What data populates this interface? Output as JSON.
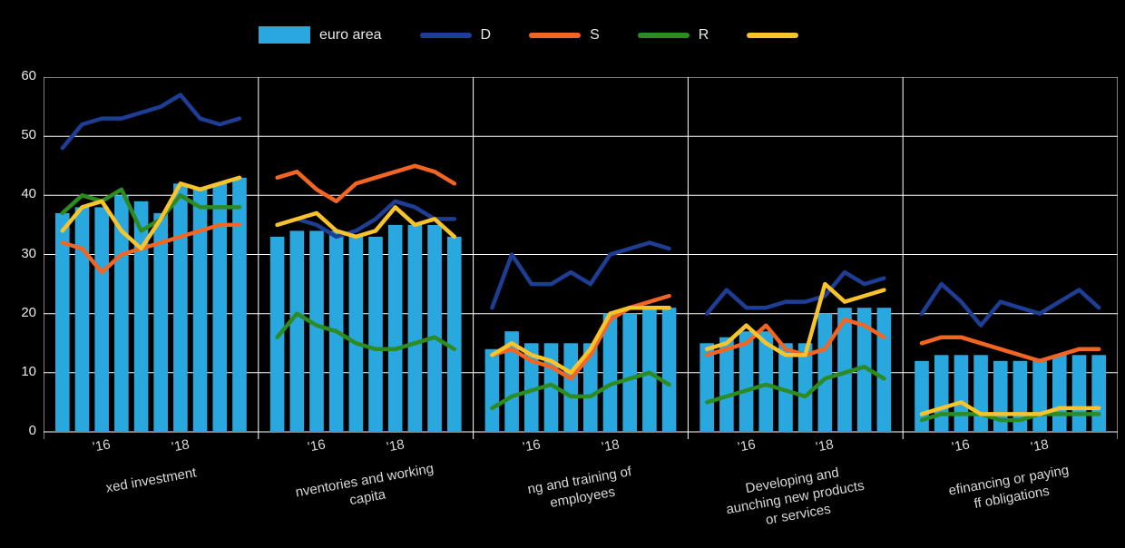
{
  "legend": {
    "items": [
      {
        "label": "euro area",
        "color": "#29a8e0",
        "type": "bar"
      },
      {
        "label": "D",
        "color": "#1d3e94",
        "type": "line"
      },
      {
        "label": "S",
        "color": "#f26522",
        "type": "line"
      },
      {
        "label": "R",
        "color": "#2e8b22",
        "type": "line"
      },
      {
        "label": "",
        "color": "#f9c32b",
        "type": "line"
      }
    ]
  },
  "chart_data": {
    "type": "bar+line",
    "y_range": [
      0,
      60
    ],
    "y_ticks": [
      60,
      50,
      40,
      30,
      20,
      10,
      0
    ],
    "grid": true,
    "bar_series": "euro area",
    "bar_color": "#29a8e0",
    "line_series": [
      "D",
      "S",
      "R",
      ""
    ],
    "line_colors": [
      "#1d3e94",
      "#f26522",
      "#2e8b22",
      "#f9c32b"
    ],
    "x_ticks": {
      "labels": [
        "'16",
        "'18"
      ],
      "indices": [
        2,
        6
      ]
    },
    "panels": [
      {
        "title_lines": [
          "xed investment"
        ],
        "bars": [
          37,
          38,
          38,
          40,
          39,
          37,
          42,
          41,
          42,
          43
        ],
        "lines": [
          [
            48,
            52,
            53,
            53,
            54,
            55,
            57,
            53,
            52,
            53
          ],
          [
            32,
            31,
            27,
            30,
            31,
            32,
            33,
            34,
            35,
            35
          ],
          [
            37,
            40,
            39,
            41,
            34,
            36,
            40,
            38,
            38,
            38
          ],
          [
            34,
            38,
            39,
            34,
            31,
            36,
            42,
            41,
            42,
            43
          ]
        ]
      },
      {
        "title_lines": [
          "nventories and working",
          "capita"
        ],
        "bars": [
          33,
          34,
          34,
          34,
          33,
          33,
          35,
          35,
          35,
          33
        ],
        "lines": [
          [
            35,
            36,
            35,
            33,
            34,
            36,
            39,
            38,
            36,
            36
          ],
          [
            43,
            44,
            41,
            39,
            42,
            43,
            44,
            45,
            44,
            42
          ],
          [
            16,
            20,
            18,
            17,
            15,
            14,
            14,
            15,
            16,
            14
          ],
          [
            35,
            36,
            37,
            34,
            33,
            34,
            38,
            35,
            36,
            33
          ]
        ]
      },
      {
        "title_lines": [
          "ng and training of",
          "employees"
        ],
        "bars": [
          14,
          17,
          15,
          15,
          15,
          15,
          20,
          20,
          21,
          21
        ],
        "lines": [
          [
            21,
            30,
            25,
            25,
            27,
            25,
            30,
            31,
            32,
            31
          ],
          [
            13,
            14,
            12,
            11,
            9,
            13,
            19,
            21,
            22,
            23
          ],
          [
            4,
            6,
            7,
            8,
            6,
            6,
            8,
            9,
            10,
            8
          ],
          [
            13,
            15,
            13,
            12,
            10,
            14,
            20,
            21,
            21,
            21
          ]
        ]
      },
      {
        "title_lines": [
          "Developing and",
          "aunching new products",
          "or services"
        ],
        "bars": [
          15,
          16,
          17,
          17,
          15,
          15,
          20,
          21,
          21,
          21
        ],
        "lines": [
          [
            20,
            24,
            21,
            21,
            22,
            22,
            23,
            27,
            25,
            26
          ],
          [
            13,
            14,
            15,
            18,
            14,
            13,
            14,
            19,
            18,
            16
          ],
          [
            5,
            6,
            7,
            8,
            7,
            6,
            9,
            10,
            11,
            9
          ],
          [
            14,
            15,
            18,
            15,
            13,
            13,
            25,
            22,
            23,
            24
          ]
        ]
      },
      {
        "title_lines": [
          "efinancing or paying",
          "ff obligations"
        ],
        "bars": [
          12,
          13,
          13,
          13,
          12,
          12,
          12,
          13,
          13,
          13
        ],
        "lines": [
          [
            20,
            25,
            22,
            18,
            22,
            21,
            20,
            22,
            24,
            21
          ],
          [
            15,
            16,
            16,
            15,
            14,
            13,
            12,
            13,
            14,
            14
          ],
          [
            2,
            3,
            3,
            3,
            2,
            2,
            3,
            3,
            3,
            3
          ],
          [
            3,
            4,
            5,
            3,
            3,
            3,
            3,
            4,
            4,
            4
          ]
        ]
      }
    ]
  }
}
